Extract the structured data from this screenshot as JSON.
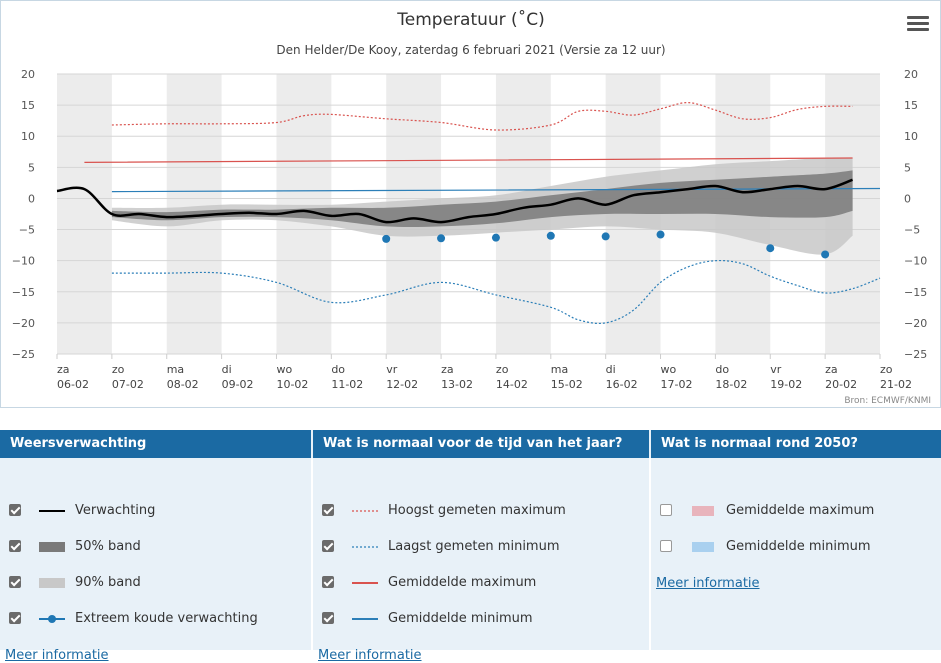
{
  "chart_data": {
    "type": "line",
    "title": "Temperatuur (˚C)",
    "subtitle": "Den Helder/De Kooy, zaterdag 6 februari 2021 (Versie za 12 uur)",
    "credit": "Bron: ECMWF/KNMI",
    "ylim": [
      -25,
      20
    ],
    "yticks": [
      20,
      15,
      10,
      5,
      0,
      -5,
      -10,
      -15,
      -20,
      -25
    ],
    "xlim": [
      0,
      15
    ],
    "day_labels": [
      {
        "day": "za",
        "date": "06-02"
      },
      {
        "day": "zo",
        "date": "07-02"
      },
      {
        "day": "ma",
        "date": "08-02"
      },
      {
        "day": "di",
        "date": "09-02"
      },
      {
        "day": "wo",
        "date": "10-02"
      },
      {
        "day": "do",
        "date": "11-02"
      },
      {
        "day": "vr",
        "date": "12-02"
      },
      {
        "day": "za",
        "date": "13-02"
      },
      {
        "day": "zo",
        "date": "14-02"
      },
      {
        "day": "ma",
        "date": "15-02"
      },
      {
        "day": "di",
        "date": "16-02"
      },
      {
        "day": "wo",
        "date": "17-02"
      },
      {
        "day": "do",
        "date": "18-02"
      },
      {
        "day": "vr",
        "date": "19-02"
      },
      {
        "day": "za",
        "date": "20-02"
      },
      {
        "day": "zo",
        "date": "21-02"
      }
    ],
    "grid": true,
    "series": [
      {
        "name": "Hoogst gemeten maximum",
        "color": "#d9534f",
        "style": "dotted",
        "x": [
          1,
          2,
          3,
          4,
          4.5,
          5,
          6,
          7,
          8,
          9,
          9.5,
          10,
          10.5,
          11,
          11.5,
          12,
          12.5,
          13,
          13.5,
          14,
          14.5
        ],
        "y": [
          11.8,
          12.0,
          12.0,
          12.2,
          13.3,
          13.5,
          12.8,
          12.2,
          11.0,
          11.8,
          14.0,
          14.0,
          13.4,
          14.4,
          15.4,
          14.2,
          12.8,
          13.0,
          14.3,
          14.8,
          14.8
        ]
      },
      {
        "name": "Laagst gemeten minimum",
        "color": "#2c7fb8",
        "style": "dotted",
        "x": [
          1,
          2,
          3,
          4,
          5,
          6,
          7,
          8,
          9,
          9.5,
          10,
          10.5,
          11,
          11.5,
          12,
          12.5,
          13,
          13.5,
          14,
          14.5,
          15
        ],
        "y": [
          -12.0,
          -12.0,
          -12.0,
          -13.5,
          -16.7,
          -15.5,
          -13.5,
          -15.5,
          -17.5,
          -19.5,
          -20.0,
          -18.0,
          -13.5,
          -11.0,
          -10.0,
          -10.5,
          -12.5,
          -14.0,
          -15.2,
          -14.5,
          -12.8
        ]
      },
      {
        "name": "Gemiddelde maximum",
        "color": "#d9534f",
        "style": "solid",
        "x": [
          0.5,
          14.5
        ],
        "y": [
          5.8,
          6.5
        ]
      },
      {
        "name": "Gemiddelde minimum",
        "color": "#2c7fb8",
        "style": "solid",
        "x": [
          1,
          15
        ],
        "y": [
          1.1,
          1.6
        ]
      },
      {
        "name": "Verwachting",
        "color": "#000000",
        "style": "solid",
        "x": [
          0,
          0.5,
          1.0,
          1.5,
          2.0,
          2.5,
          3.0,
          3.5,
          4.0,
          4.5,
          5.0,
          5.5,
          6.0,
          6.5,
          7.0,
          7.5,
          8.0,
          8.5,
          9.0,
          9.5,
          10.0,
          10.5,
          11.0,
          11.5,
          12.0,
          12.5,
          13.0,
          13.5,
          14.0,
          14.5
        ],
        "y": [
          1.2,
          1.5,
          -2.5,
          -2.5,
          -3.0,
          -2.8,
          -2.5,
          -2.3,
          -2.5,
          -2.0,
          -2.8,
          -2.5,
          -3.8,
          -3.2,
          -3.8,
          -3.0,
          -2.5,
          -1.5,
          -1.0,
          0.0,
          -1.0,
          0.5,
          1.0,
          1.5,
          2.0,
          1.0,
          1.5,
          2.0,
          1.5,
          3.0
        ]
      },
      {
        "name": "Extreem koude verwachting",
        "color": "#1f77b4",
        "style": "points",
        "x": [
          6,
          7,
          8,
          9,
          10,
          11,
          13,
          14
        ],
        "y": [
          -6.5,
          -6.4,
          -6.3,
          -6.0,
          -6.1,
          -5.8,
          -8.0,
          -9.0
        ]
      }
    ],
    "bands": [
      {
        "name": "90% band",
        "color": "#c8c8c8",
        "x": [
          1,
          2,
          3,
          4,
          5,
          6,
          7,
          8,
          9,
          10,
          11,
          12,
          13,
          14,
          14.5
        ],
        "lower": [
          -3.5,
          -4.5,
          -3.5,
          -3.5,
          -4.5,
          -6.0,
          -6.0,
          -5.5,
          -5.0,
          -4.5,
          -5.0,
          -5.5,
          -7.5,
          -9.0,
          -6.0
        ],
        "upper": [
          -1.5,
          -1.5,
          -1.0,
          -1.0,
          -1.0,
          -0.5,
          0.0,
          0.5,
          2.0,
          3.5,
          4.5,
          5.5,
          6.0,
          6.5,
          6.5
        ]
      },
      {
        "name": "50% band",
        "color": "#7a7a7a",
        "x": [
          1,
          2,
          3,
          4,
          5,
          6,
          7,
          8,
          9,
          10,
          11,
          12,
          13,
          14,
          14.5
        ],
        "lower": [
          -3.0,
          -3.5,
          -3.0,
          -3.0,
          -3.5,
          -4.5,
          -4.5,
          -4.0,
          -3.0,
          -2.5,
          -2.5,
          -2.5,
          -3.0,
          -3.0,
          -2.0
        ],
        "upper": [
          -2.0,
          -2.2,
          -1.8,
          -1.8,
          -1.5,
          -1.5,
          -1.0,
          -0.5,
          0.5,
          1.5,
          2.5,
          3.0,
          3.5,
          4.0,
          4.5
        ]
      }
    ]
  },
  "menu_icon": "hamburger-menu-icon",
  "legend": {
    "col1": {
      "title": "Weersverwachting",
      "items": [
        {
          "label": "Verwachting",
          "checked": true,
          "symbol": "black-line"
        },
        {
          "label": "50% band",
          "checked": true,
          "symbol": "dark-gray-band"
        },
        {
          "label": "90% band",
          "checked": true,
          "symbol": "light-gray-band"
        },
        {
          "label": "Extreem koude verwachting",
          "checked": true,
          "symbol": "blue-dot-line"
        }
      ],
      "more": "Meer informatie"
    },
    "col2": {
      "title": "Wat is normaal voor de tijd van het jaar?",
      "items": [
        {
          "label": "Hoogst gemeten maximum",
          "checked": true,
          "symbol": "red-dotted-line"
        },
        {
          "label": "Laagst gemeten minimum",
          "checked": true,
          "symbol": "blue-dotted-line"
        },
        {
          "label": "Gemiddelde maximum",
          "checked": true,
          "symbol": "red-line"
        },
        {
          "label": "Gemiddelde minimum",
          "checked": true,
          "symbol": "blue-line"
        }
      ],
      "more": "Meer informatie"
    },
    "col3": {
      "title": "Wat is normaal rond 2050?",
      "items": [
        {
          "label": "Gemiddelde maximum",
          "checked": false,
          "symbol": "pink-box"
        },
        {
          "label": "Gemiddelde minimum",
          "checked": false,
          "symbol": "light-blue-box"
        }
      ],
      "more": "Meer informatie"
    }
  }
}
